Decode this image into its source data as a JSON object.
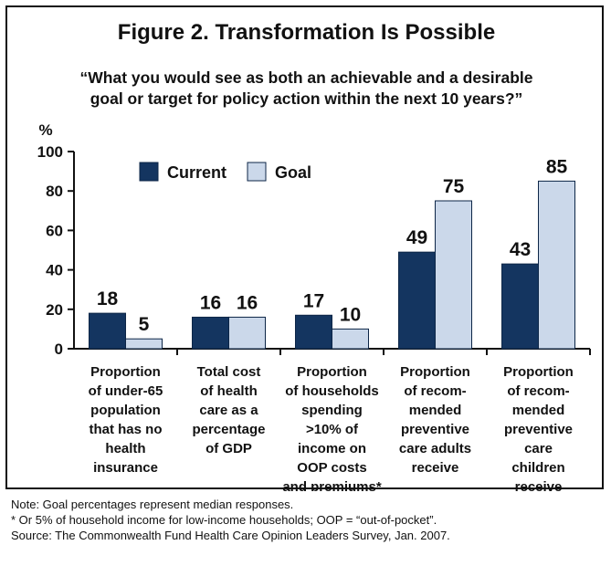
{
  "title": "Figure 2. Transformation Is Possible",
  "subtitle_lines": [
    "“What you would see as both an achievable and a desirable",
    "goal or target for policy action within the next 10 years?”"
  ],
  "notes": [
    "Note: Goal percentages represent median responses.",
    "* Or 5% of household income for low-income households; OOP = “out-of-pocket”.",
    "Source: The Commonwealth Fund Health Care Opinion Leaders Survey, Jan. 2007."
  ],
  "chart_data": {
    "type": "bar",
    "ylabel": "%",
    "ylim": [
      0,
      100
    ],
    "yticks": [
      0,
      20,
      40,
      60,
      80,
      100
    ],
    "grid": false,
    "legend_position": "top-left",
    "categories": [
      [
        "Proportion",
        "of under-65",
        "population",
        "that has no",
        "health",
        "insurance"
      ],
      [
        "Total cost",
        "of health",
        "care as a",
        "percentage",
        "of GDP"
      ],
      [
        "Proportion",
        "of households",
        "spending",
        ">10% of",
        "income on",
        "OOP costs",
        "and premiums*"
      ],
      [
        "Proportion",
        "of recom-",
        "mended",
        "preventive",
        "care adults",
        "receive"
      ],
      [
        "Proportion",
        "of recom-",
        "mended",
        "preventive",
        "care",
        "children",
        "receive"
      ]
    ],
    "series": [
      {
        "name": "Current",
        "color": "#143560",
        "values": [
          18,
          16,
          17,
          49,
          43
        ]
      },
      {
        "name": "Goal",
        "color": "#cbd8ea",
        "values": [
          5,
          16,
          10,
          75,
          85
        ]
      }
    ]
  }
}
